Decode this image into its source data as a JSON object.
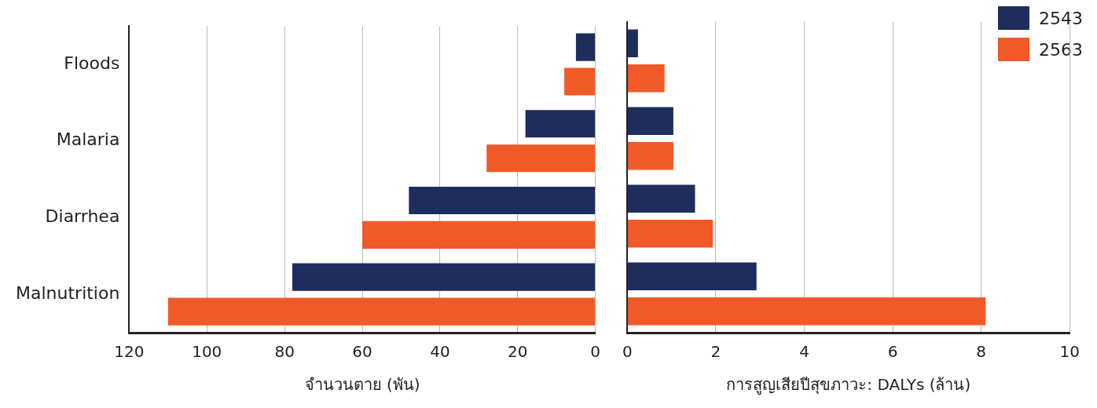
{
  "chart_data": [
    {
      "type": "bar",
      "orientation": "horizontal",
      "categories": [
        "Floods",
        "Malaria",
        "Diarrhea",
        "Malnutrition"
      ],
      "xlabel": "จำนวนตาย (พัน)",
      "xlim": [
        120,
        0
      ],
      "xticks": [
        120,
        100,
        80,
        60,
        40,
        20,
        0
      ],
      "grid": "x",
      "tick_labels": "xy",
      "series": [
        {
          "color": "#1f2d5c",
          "values": [
            5,
            18,
            48,
            78
          ]
        },
        {
          "color": "#f05a28",
          "values": [
            8,
            28,
            60,
            110
          ]
        }
      ]
    },
    {
      "type": "bar",
      "orientation": "horizontal",
      "categories": [
        null,
        null,
        null,
        null
      ],
      "xlabel": "การสูญเสียปีสุขภาวะ: DALYs (ล้าน)",
      "xlim": [
        0,
        10
      ],
      "xticks": [
        0,
        2,
        4,
        6,
        8,
        10
      ],
      "grid": "x",
      "tick_labels": "x",
      "legend": "top right",
      "series": [
        {
          "name": "2543",
          "color": "#1f2d5c",
          "values": [
            0.24,
            1.04,
            1.53,
            2.92
          ]
        },
        {
          "name": "2563",
          "color": "#f05a28",
          "values": [
            0.84,
            1.04,
            1.93,
            8.1
          ]
        }
      ]
    }
  ]
}
